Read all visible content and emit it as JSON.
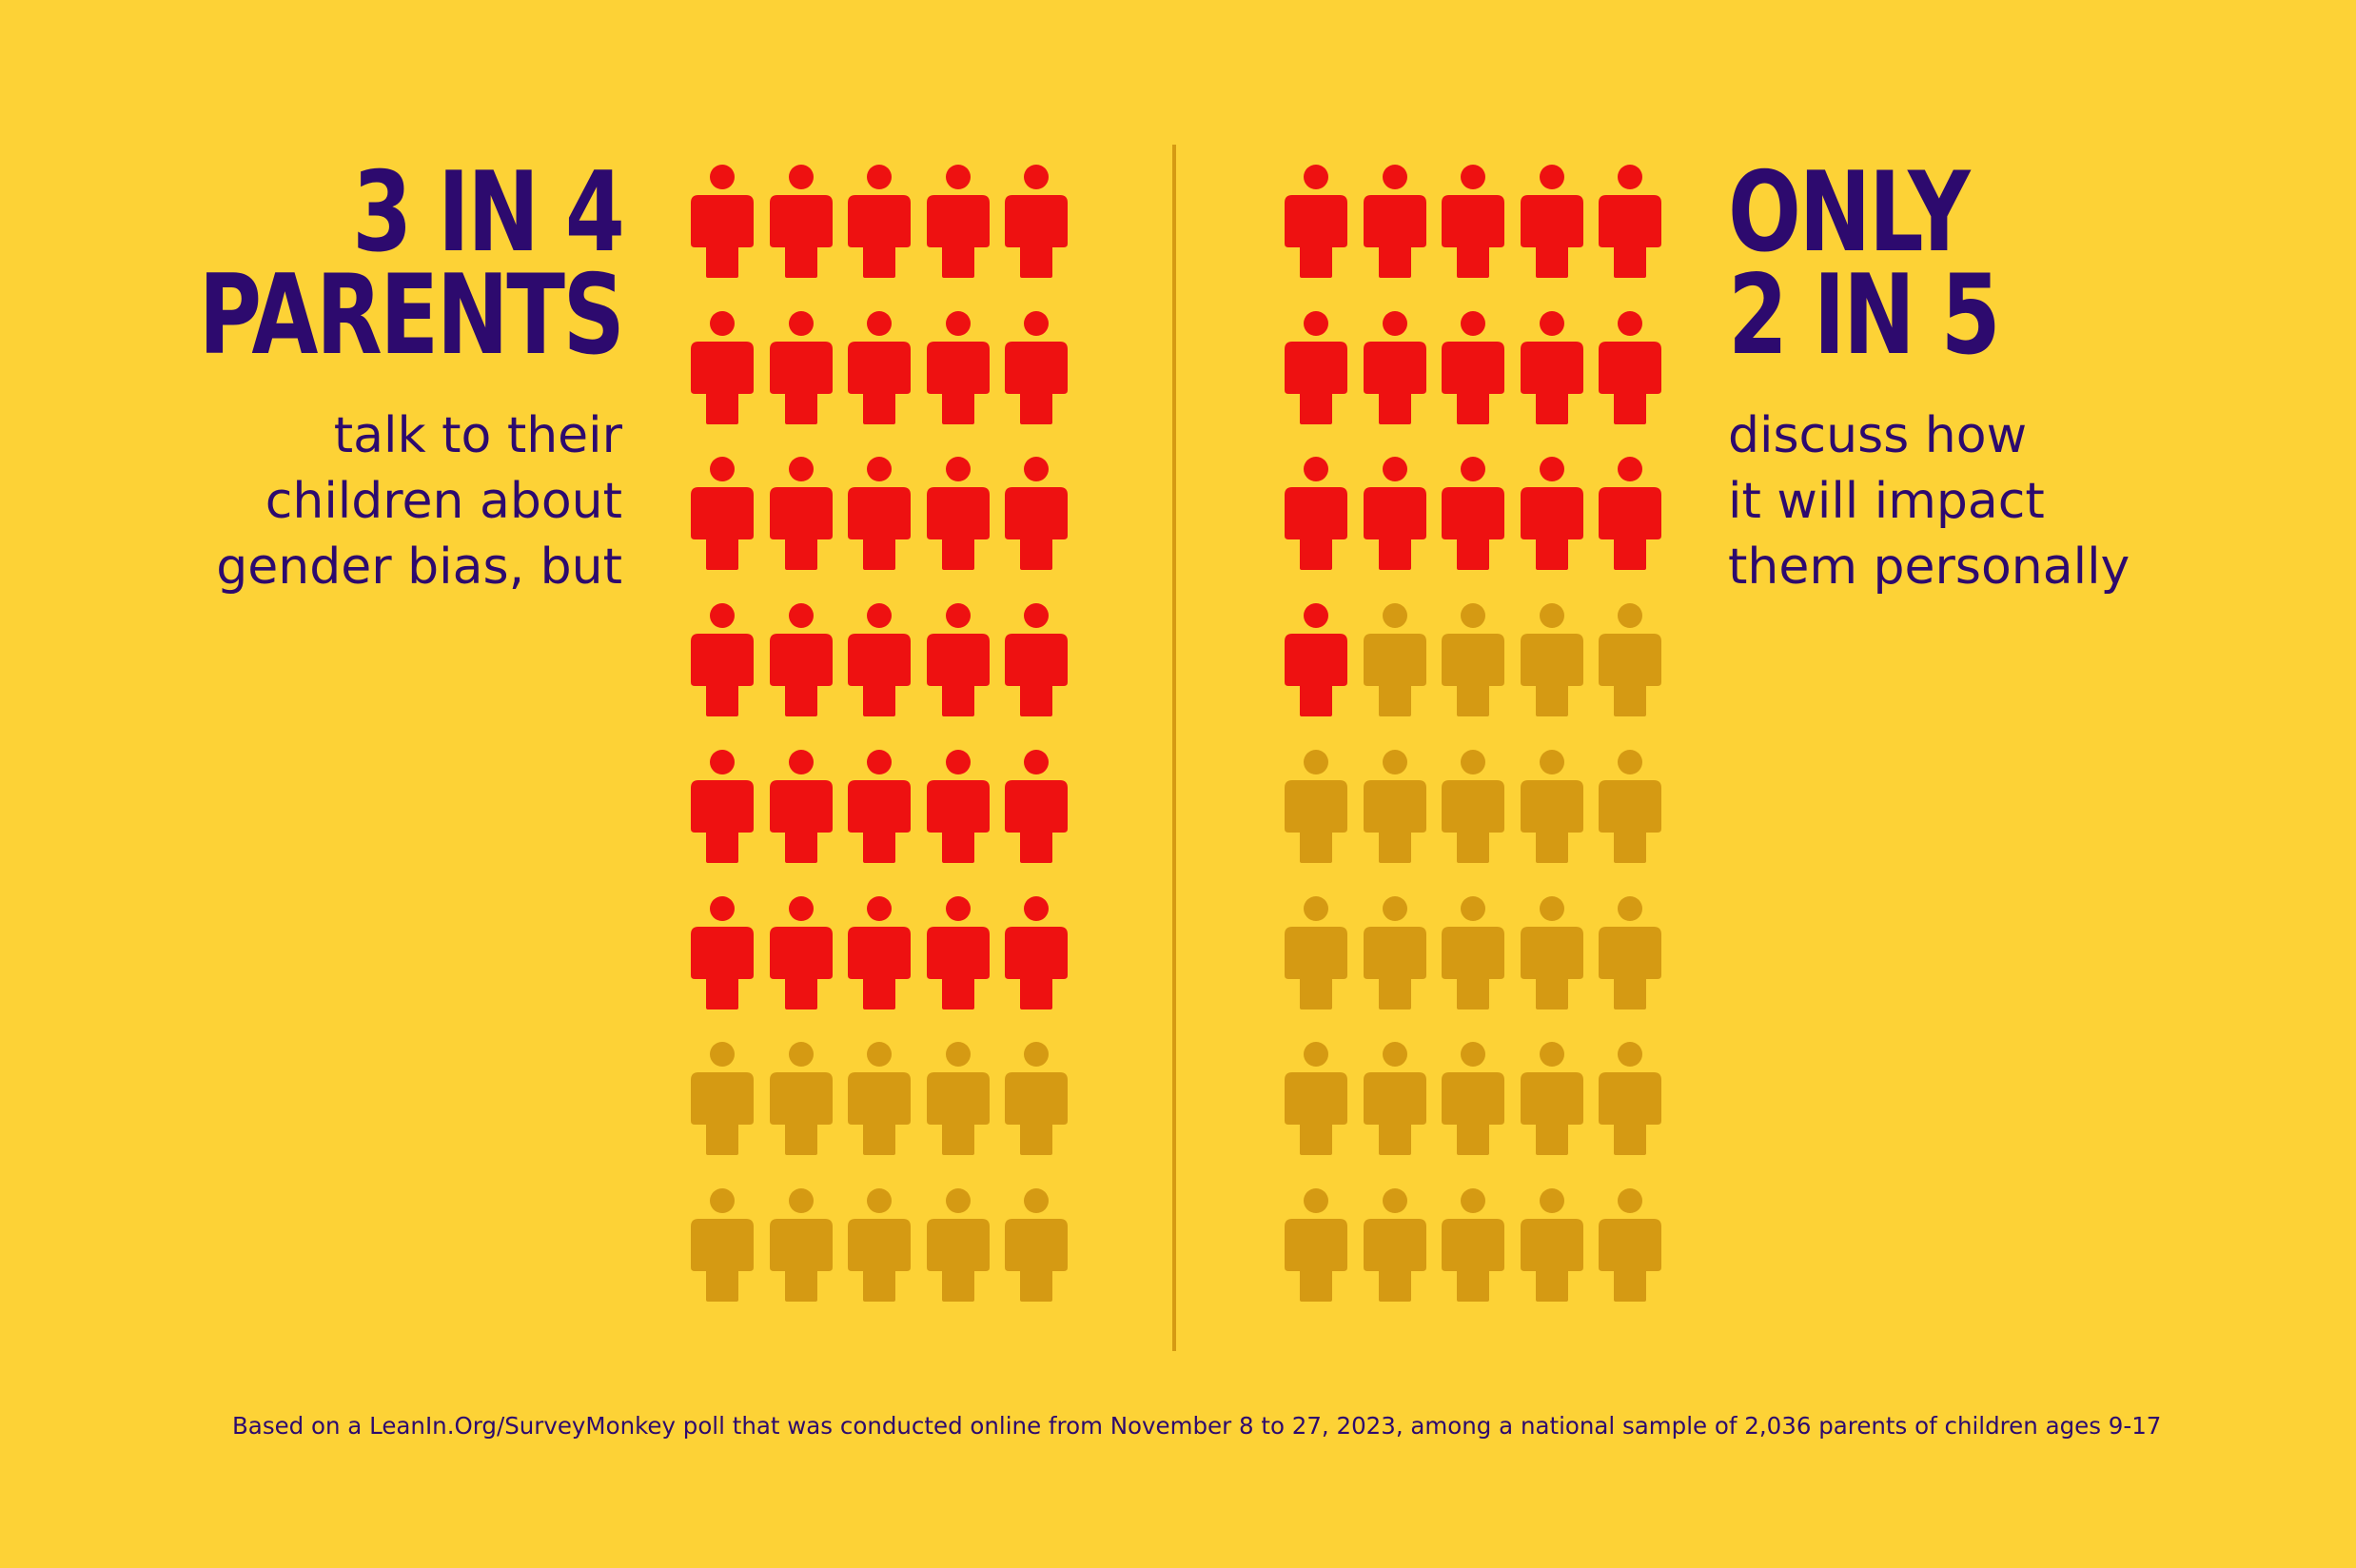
{
  "colors": {
    "background": "#fdd236",
    "text": "#2d0a6e",
    "highlight": "#ee1111",
    "muted": "#d59a13",
    "divider": "#d59a13"
  },
  "left": {
    "headline": [
      "3 IN 4",
      "PARENTS"
    ],
    "subtext": [
      "talk to their",
      "children about",
      "gender bias, but"
    ]
  },
  "right": {
    "headline": [
      "ONLY",
      "2 IN 5"
    ],
    "subtext": [
      "discuss how",
      "it will impact",
      "them personally"
    ]
  },
  "footnote": "Based on a LeanIn.Org/SurveyMonkey poll that was conducted online from November 8 to 27, 2023, among a national sample of 2,036 parents of children ages 9-17",
  "chart_data": [
    {
      "type": "pictogram",
      "icon": "person-icon",
      "rows": 8,
      "cols": 5,
      "total": 40,
      "highlighted": 30,
      "fraction": 0.75
    },
    {
      "type": "pictogram",
      "icon": "person-icon",
      "rows": 8,
      "cols": 5,
      "total": 40,
      "highlighted": 16,
      "fraction": 0.4
    }
  ]
}
